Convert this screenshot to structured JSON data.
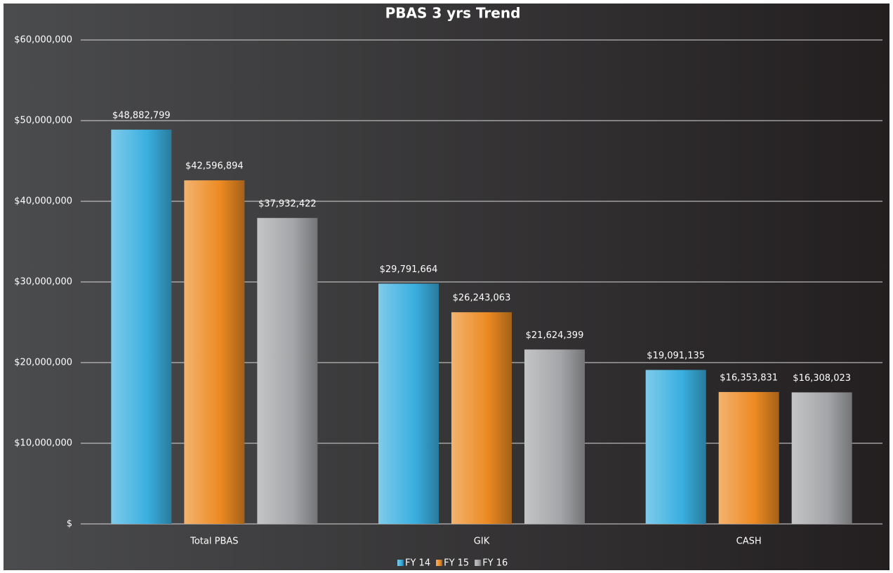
{
  "chart_data": {
    "type": "bar",
    "title": "PBAS 3 yrs Trend",
    "categories": [
      "Total PBAS",
      "GIK",
      "CASH"
    ],
    "series": [
      {
        "name": "FY 14",
        "color": "#3aafe0",
        "values": [
          48882799,
          29791664,
          19091135
        ],
        "value_labels": [
          "$48,882,799",
          "$29,791,664",
          "$19,091,135"
        ]
      },
      {
        "name": "FY 15",
        "color": "#ec8a22",
        "values": [
          42596894,
          26243063,
          16353831
        ],
        "value_labels": [
          "$42,596,894",
          "$26,243,063",
          "$16,353,831"
        ]
      },
      {
        "name": "FY 16",
        "color": "#a4a5a8",
        "values": [
          37932422,
          21624399,
          16308023
        ],
        "value_labels": [
          "$37,932,422",
          "$21,624,399",
          "$16,308,023"
        ]
      }
    ],
    "ylim": [
      0,
      60000000
    ],
    "yticks": [
      {
        "value": 0,
        "label": "$"
      },
      {
        "value": 10000000,
        "label": "$10,000,000"
      },
      {
        "value": 20000000,
        "label": "$20,000,000"
      },
      {
        "value": 30000000,
        "label": "$30,000,000"
      },
      {
        "value": 40000000,
        "label": "$40,000,000"
      },
      {
        "value": 50000000,
        "label": "$50,000,000"
      },
      {
        "value": 60000000,
        "label": "$60,000,000"
      }
    ],
    "grid": true,
    "legend": "bottom"
  }
}
